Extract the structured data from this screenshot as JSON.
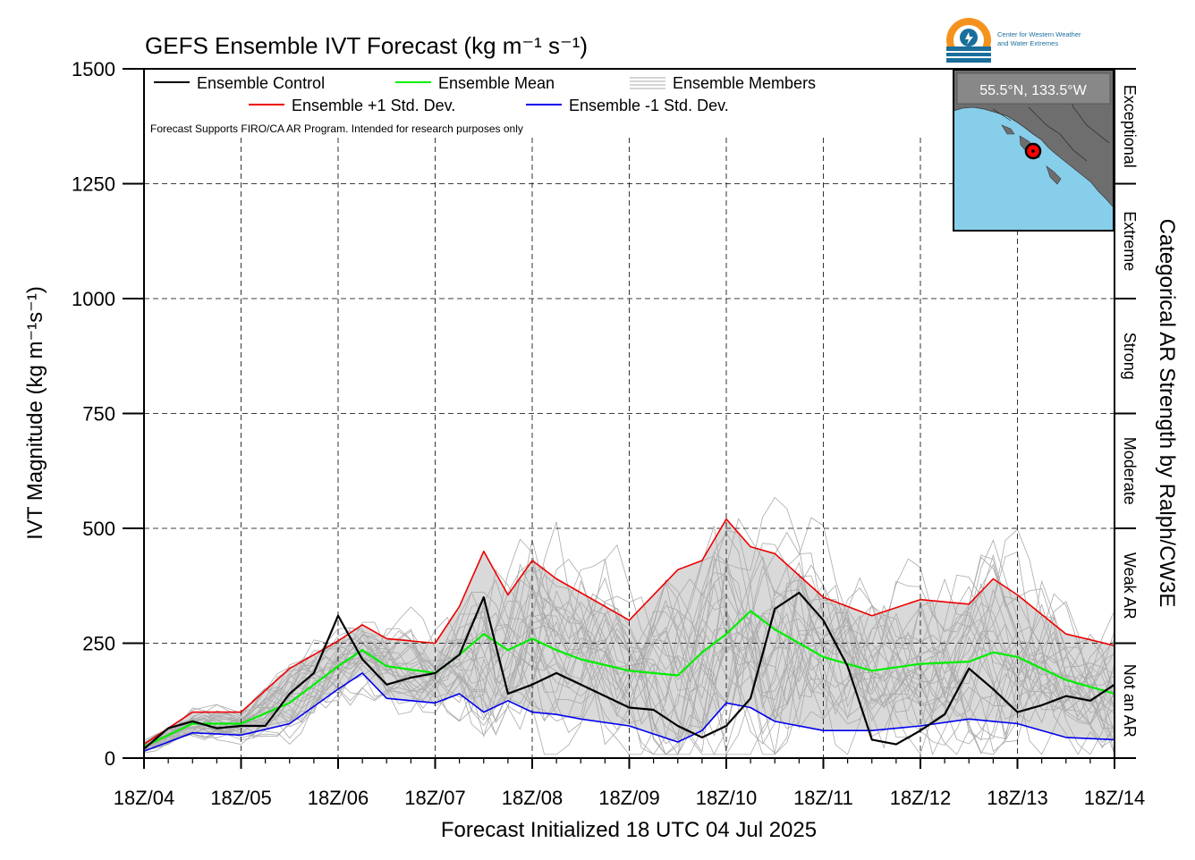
{
  "chart_data": {
    "type": "line",
    "title": "GEFS Ensemble IVT Forecast (kg m⁻¹ s⁻¹)",
    "ylabel": "IVT Magnitude (kg m⁻¹s⁻¹)",
    "xlabel": "Forecast Initialized 18 UTC 04 Jul 2025",
    "right_label": "Categorical AR Strength by Ralph/CW3E",
    "note": "Forecast Supports FIRO/CA AR Program. Intended for research purposes only",
    "ylim": [
      0,
      1500
    ],
    "y_ticks": [
      0,
      250,
      500,
      750,
      1000,
      1250,
      1500
    ],
    "x_range_days": [
      0,
      10
    ],
    "x_tick_labels": [
      "18Z/04",
      "18Z/05",
      "18Z/06",
      "18Z/07",
      "18Z/08",
      "18Z/09",
      "18Z/10",
      "18Z/11",
      "18Z/12",
      "18Z/13",
      "18Z/14"
    ],
    "grid": true,
    "legend": {
      "position": "top-left",
      "control": "Ensemble Control",
      "mean": "Ensemble Mean",
      "members": "Ensemble Members",
      "plus_sd": "Ensemble +1 Std. Dev.",
      "minus_sd": "Ensemble -1 Std. Dev."
    },
    "colors": {
      "control": "#000000",
      "mean": "#00ee00",
      "plus_sd": "#ee0000",
      "minus_sd": "#0000ee",
      "members": "#aaaaaa",
      "band": "#d9d9d9"
    },
    "categories": [
      {
        "label": "Not an AR",
        "range": [
          0,
          250
        ]
      },
      {
        "label": "Weak AR",
        "range": [
          250,
          500
        ]
      },
      {
        "label": "Moderate",
        "range": [
          500,
          750
        ]
      },
      {
        "label": "Strong",
        "range": [
          750,
          1000
        ]
      },
      {
        "label": "Extreme",
        "range": [
          1000,
          1250
        ]
      },
      {
        "label": "Exceptional",
        "range": [
          1250,
          1500
        ]
      }
    ],
    "location_label": "55.5°N, 133.5°W",
    "logo_text": [
      "Center for Western Weather",
      "and Water Extremes"
    ],
    "series": [
      {
        "name": "Ensemble Control",
        "x": [
          0,
          0.25,
          0.5,
          0.75,
          1,
          1.25,
          1.5,
          1.75,
          2,
          2.25,
          2.5,
          2.75,
          3,
          3.25,
          3.5,
          3.75,
          4,
          4.25,
          4.5,
          4.75,
          5,
          5.25,
          5.5,
          5.75,
          6,
          6.25,
          6.5,
          6.75,
          7,
          7.25,
          7.5,
          7.75,
          8,
          8.25,
          8.5,
          8.75,
          9,
          9.25,
          9.5,
          9.75,
          10
        ],
        "values": [
          20,
          65,
          80,
          65,
          70,
          70,
          140,
          185,
          310,
          215,
          160,
          175,
          185,
          225,
          350,
          140,
          160,
          185,
          160,
          135,
          110,
          105,
          70,
          45,
          70,
          130,
          325,
          360,
          300,
          200,
          40,
          30,
          60,
          95,
          195,
          150,
          100,
          115,
          135,
          125,
          160
        ]
      },
      {
        "name": "Ensemble Mean",
        "x": [
          0,
          0.5,
          1,
          1.5,
          2,
          2.25,
          2.5,
          3,
          3.25,
          3.5,
          3.75,
          4,
          4.25,
          4.5,
          5,
          5.5,
          5.75,
          6,
          6.25,
          6.5,
          7,
          7.5,
          8,
          8.5,
          8.75,
          9,
          9.5,
          10
        ],
        "values": [
          25,
          75,
          75,
          120,
          200,
          235,
          200,
          185,
          225,
          270,
          235,
          260,
          235,
          215,
          190,
          180,
          230,
          270,
          320,
          280,
          220,
          190,
          205,
          210,
          230,
          220,
          170,
          140
        ]
      },
      {
        "name": "Ensemble +1 Std. Dev.",
        "x": [
          0,
          0.5,
          1,
          1.5,
          2,
          2.25,
          2.5,
          3,
          3.25,
          3.5,
          3.75,
          4,
          4.25,
          4.5,
          5,
          5.5,
          5.75,
          6,
          6.25,
          6.5,
          7,
          7.5,
          8,
          8.5,
          8.75,
          9,
          9.5,
          10
        ],
        "values": [
          30,
          100,
          100,
          195,
          255,
          290,
          260,
          250,
          330,
          450,
          355,
          430,
          390,
          360,
          300,
          410,
          430,
          520,
          460,
          445,
          350,
          310,
          345,
          335,
          390,
          355,
          270,
          245
        ]
      },
      {
        "name": "Ensemble -1 Std. Dev.",
        "x": [
          0,
          0.5,
          1,
          1.5,
          2,
          2.25,
          2.5,
          3,
          3.25,
          3.5,
          3.75,
          4,
          4.25,
          4.5,
          5,
          5.5,
          5.75,
          6,
          6.25,
          6.5,
          7,
          7.5,
          8,
          8.5,
          8.75,
          9,
          9.5,
          10
        ],
        "values": [
          15,
          55,
          50,
          75,
          150,
          185,
          130,
          120,
          140,
          100,
          125,
          100,
          95,
          85,
          70,
          35,
          60,
          120,
          110,
          80,
          60,
          60,
          70,
          85,
          80,
          75,
          45,
          40
        ]
      }
    ]
  }
}
